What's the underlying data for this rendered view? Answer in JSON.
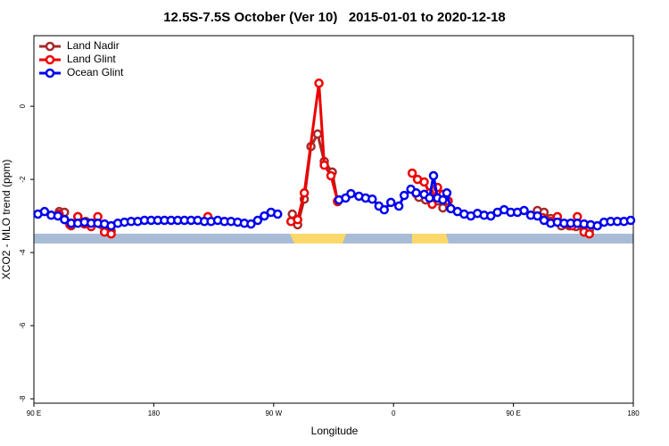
{
  "chart_data": {
    "type": "line",
    "title": "12.5S-7.5S October (Ver 10)   2015-01-01 to 2020-12-18",
    "x_label": "Longitude",
    "y_label": "XCO2 - MLO trend (ppm)",
    "xlim": [
      90,
      540
    ],
    "ylim": [
      -8.12,
      1.93
    ],
    "xticks": [
      {
        "value": 90,
        "label": "90 E"
      },
      180,
      {
        "value": 270,
        "label": "90 W"
      },
      {
        "value": 360,
        "label": "0"
      },
      {
        "value": 450,
        "label": "90 E"
      },
      {
        "value": 540,
        "label": "180"
      }
    ],
    "yticks": [
      -8,
      -6,
      -4,
      -2,
      0
    ],
    "legend": "top-left",
    "series": [
      {
        "name": "Land Nadir",
        "color": "#a52a2a",
        "x": [
          109,
          113,
          118,
          123,
          129,
          134,
          144,
          148,
          null,
          284,
          288,
          293,
          298,
          303,
          308,
          314,
          318,
          null,
          377,
          379,
          384,
          389,
          393,
          397,
          null,
          468,
          473,
          478,
          482,
          486,
          492,
          497,
          503,
          507
        ],
        "values": [
          -2.88,
          -2.9,
          -3.27,
          -3.02,
          -3.15,
          -3.2,
          -3.41,
          -3.41,
          null,
          -2.95,
          -3.24,
          -2.54,
          -1.1,
          -0.76,
          -1.51,
          -1.8,
          -2.61,
          null,
          -2.39,
          -2.49,
          -2.56,
          -2.51,
          -2.59,
          -2.78,
          null,
          -2.85,
          -2.9,
          -3.07,
          -3.15,
          -3.27,
          -3.27,
          -3.29,
          -3.39,
          -3.39
        ]
      },
      {
        "name": "Land Glint",
        "color": "#ee0000",
        "x": [
          109,
          117,
          123,
          128,
          133,
          138,
          143,
          148,
          null,
          220.6,
          null,
          283,
          288,
          293,
          304,
          308,
          313,
          318,
          null,
          374,
          378,
          383,
          387,
          389,
          393,
          397,
          401,
          null,
          472,
          478,
          483,
          489,
          494,
          498,
          503,
          507
        ],
        "values": [
          -2.95,
          -3.24,
          -3.02,
          -3.22,
          -3.29,
          -3.02,
          -3.44,
          -3.49,
          null,
          -3.02,
          null,
          -3.15,
          -3.1,
          -2.37,
          0.63,
          -1.61,
          -1.9,
          -2.59,
          null,
          -1.83,
          -2.0,
          -2.07,
          -2.37,
          -2.68,
          -2.22,
          -2.41,
          -2.59,
          null,
          -3.05,
          -3.15,
          -3.02,
          -3.22,
          -3.27,
          -3.02,
          -3.44,
          -3.49
        ]
      },
      {
        "name": "Ocean Glint",
        "color": "#0000ee",
        "x": [
          93,
          98,
          103,
          108,
          113,
          118,
          123,
          128,
          133,
          138,
          143,
          148,
          153,
          158,
          163,
          168,
          173,
          178,
          183,
          188,
          193,
          198,
          203,
          208,
          213,
          218,
          223,
          228,
          233,
          238,
          243,
          248,
          253,
          258,
          263,
          268,
          273,
          null,
          319,
          324,
          328,
          334,
          339,
          344,
          349,
          353,
          358,
          364,
          368,
          373,
          377,
          383,
          387,
          390,
          393,
          397,
          400,
          403,
          408,
          413,
          418,
          423,
          428,
          433,
          438,
          443,
          448,
          453,
          458,
          463,
          468,
          473,
          478,
          483,
          488,
          493,
          498,
          503,
          508,
          513,
          518,
          523,
          528,
          533,
          538
        ],
        "values": [
          -2.95,
          -2.88,
          -2.98,
          -3.0,
          -3.1,
          -3.2,
          -3.2,
          -3.17,
          -3.2,
          -3.2,
          -3.22,
          -3.27,
          -3.2,
          -3.17,
          -3.15,
          -3.15,
          -3.12,
          -3.12,
          -3.12,
          -3.12,
          -3.12,
          -3.12,
          -3.12,
          -3.12,
          -3.12,
          -3.15,
          -3.15,
          -3.12,
          -3.15,
          -3.15,
          -3.17,
          -3.2,
          -3.22,
          -3.12,
          -3.0,
          -2.9,
          -2.95,
          null,
          -2.56,
          -2.51,
          -2.39,
          -2.46,
          -2.51,
          -2.54,
          -2.73,
          -2.83,
          -2.63,
          -2.73,
          -2.44,
          -2.27,
          -2.37,
          -2.41,
          -2.51,
          -1.9,
          -2.51,
          -2.56,
          -2.37,
          -2.8,
          -2.88,
          -2.95,
          -3.0,
          -2.93,
          -2.98,
          -3.0,
          -2.9,
          -2.83,
          -2.9,
          -2.9,
          -2.85,
          -2.98,
          -3.0,
          -3.12,
          -3.2,
          -3.17,
          -3.2,
          -3.2,
          -3.2,
          -3.22,
          -3.24,
          -3.27,
          -3.17,
          -3.15,
          -3.15,
          -3.15,
          -3.12
        ]
      }
    ]
  }
}
